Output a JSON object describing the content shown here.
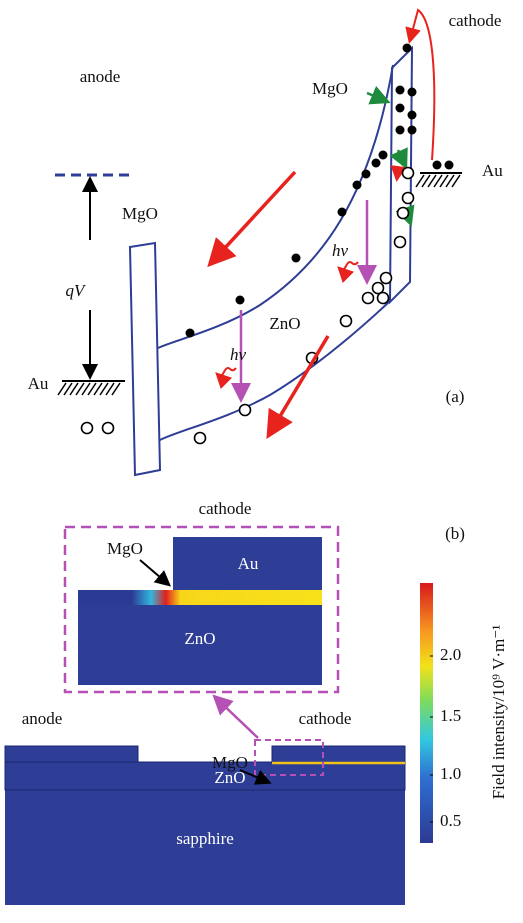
{
  "panel_a": {
    "cathode": "cathode",
    "anode": "anode",
    "mgo_right": "MgO",
    "au_right": "Au",
    "mgo_left": "MgO",
    "qv": "qV",
    "hv_left": "hν",
    "hv_right": "hν",
    "zno": "ZnO",
    "au_left": "Au",
    "label": "(a)"
  },
  "panel_b": {
    "label": "(b)",
    "inset": {
      "title": "cathode",
      "mgo": "MgO",
      "au": "Au",
      "zno": "ZnO"
    },
    "device": {
      "anode": "anode",
      "cathode": "cathode",
      "mgo": "MgO",
      "zno": "ZnO",
      "substrate": "sapphire"
    },
    "colorbar": {
      "title": "Field intensity/10⁹ V·m⁻¹",
      "ticks": [
        "2.0",
        "1.5",
        "1.0",
        "0.5"
      ]
    }
  }
}
